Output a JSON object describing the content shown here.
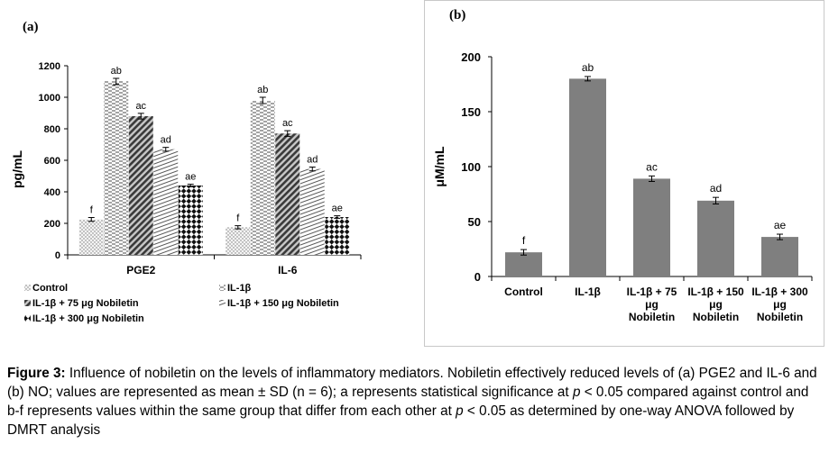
{
  "chart_data": [
    {
      "type": "bar",
      "panel_label": "(a)",
      "ylabel": "pg/mL",
      "ylim": [
        0,
        1200
      ],
      "yticks": [
        "0",
        "200",
        "400",
        "600",
        "800",
        "1000",
        "1200"
      ],
      "categories": [
        "PGE2",
        "IL-6"
      ],
      "series": [
        {
          "name": "Control",
          "values": [
            225,
            175
          ],
          "errors": [
            12,
            10
          ],
          "labels": [
            "f",
            "f"
          ],
          "color": "#d9d9d9",
          "pattern": "dots"
        },
        {
          "name": "IL-1β",
          "values": [
            1100,
            980
          ],
          "errors": [
            20,
            20
          ],
          "labels": [
            "ab",
            "ab"
          ],
          "color": "#ffffff",
          "pattern": "dashes"
        },
        {
          "name": "IL-1β + 75 μg Nobiletin",
          "values": [
            880,
            770
          ],
          "errors": [
            18,
            18
          ],
          "labels": [
            "ac",
            "ac"
          ],
          "color": "#505050",
          "pattern": "diagonal"
        },
        {
          "name": "IL-1β + 150 μg Nobiletin",
          "values": [
            670,
            545
          ],
          "errors": [
            12,
            12
          ],
          "labels": [
            "ad",
            "ad"
          ],
          "color": "#ffffff",
          "pattern": "hlines"
        },
        {
          "name": "IL-1β + 300 μg Nobiletin",
          "values": [
            440,
            240
          ],
          "errors": [
            8,
            8
          ],
          "labels": [
            "ae",
            "ae"
          ],
          "color": "#111111",
          "pattern": "checker"
        }
      ],
      "legend": "bottom",
      "legend_entries": [
        "Control",
        "IL-1β",
        "IL-1β + 75 μg Nobiletin",
        "IL-1β + 150 μg Nobiletin",
        "IL-1β + 300 μg Nobiletin"
      ],
      "grid": false
    },
    {
      "type": "bar",
      "panel_label": "(b)",
      "ylabel": "μM/mL",
      "ylim": [
        0,
        200
      ],
      "yticks": [
        "0",
        "50",
        "100",
        "150",
        "200"
      ],
      "categories": [
        [
          "Control"
        ],
        [
          "IL-1β"
        ],
        [
          "IL-1β + 75",
          "μg",
          "Nobiletin"
        ],
        [
          "IL-1β + 150",
          "μg",
          "Nobiletin"
        ],
        [
          "IL-1β + 300",
          "μg",
          "Nobiletin"
        ]
      ],
      "values": [
        22,
        180,
        89,
        69,
        36
      ],
      "errors": [
        2.5,
        2.0,
        2.5,
        3.0,
        2.5
      ],
      "labels": [
        "f",
        "ab",
        "ac",
        "ad",
        "ae"
      ],
      "color": "#7f7f7f",
      "grid": false
    }
  ],
  "caption": {
    "title": "Figure 3:",
    "text_1": " Influence of nobiletin on the levels of inflammatory mediators. Nobiletin effectively reduced levels of (a) PGE2 and IL-6 and (b) NO; values are represented as mean ± SD (n = 6); a represents statistical significance at ",
    "p1": "p",
    "text_2": " < 0.05 compared against control and b-f represents values within the same group that differ from each other at ",
    "p2": "p",
    "text_3": " < 0.05 as determined by one-way ANOVA followed by DMRT analysis"
  }
}
